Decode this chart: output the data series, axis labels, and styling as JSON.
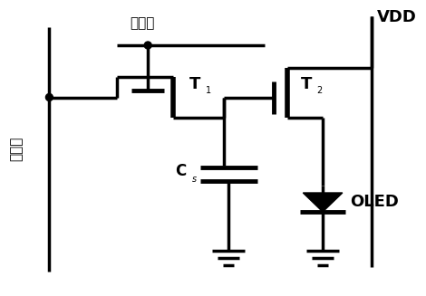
{
  "bg_color": "#ffffff",
  "labels": {
    "scan": "扫描线",
    "data": "数据线",
    "vdd": "VDD",
    "oled": "OLED",
    "t1": "T",
    "t1_sub": "1",
    "t2": "T",
    "t2_sub": "2",
    "cs": "C",
    "cs_sub": "s"
  }
}
